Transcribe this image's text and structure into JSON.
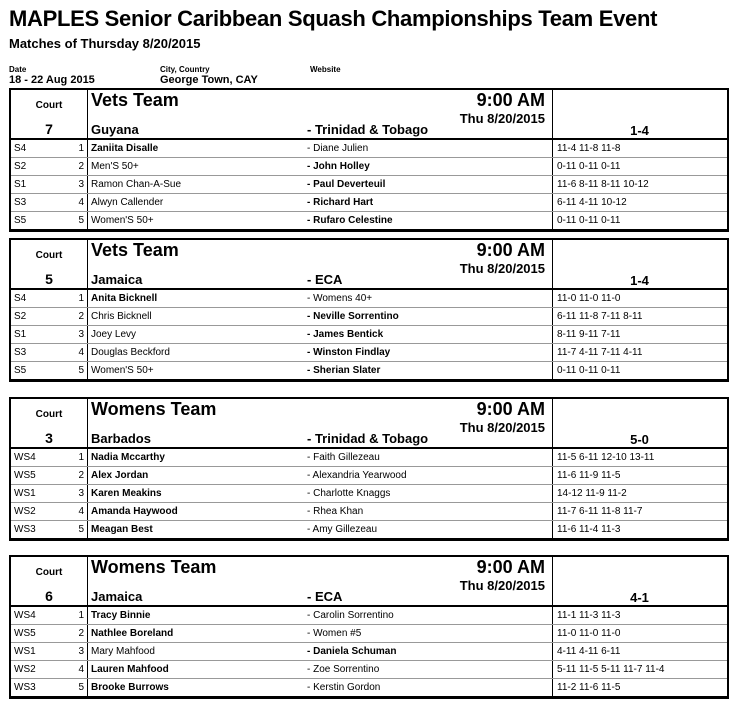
{
  "title": "MAPLES Senior Caribbean Squash Championships Team Event",
  "subtitle": "Matches of Thursday 8/20/2015",
  "meta": {
    "date_label": "Date",
    "date": "18 - 22 Aug 2015",
    "city_label": "City, Country",
    "city": "George Town, CAY",
    "website_label": "Website"
  },
  "court_label": "Court",
  "ties": [
    {
      "court": "7",
      "event": "Vets Team",
      "time": "9:00 AM",
      "date": "Thu 8/20/2015",
      "home": "Guyana",
      "away": "- Trinidad & Tobago",
      "result": "1-4",
      "matches": [
        {
          "code": "S4",
          "no": "1",
          "p1": "Zaniita Disalle",
          "p2": "- Diane Julien",
          "score": "11-4 11-8 11-8",
          "winner": 1
        },
        {
          "code": "S2",
          "no": "2",
          "p1": "Men'S 50+",
          "p2": "- John Holley",
          "score": "0-11 0-11 0-11",
          "winner": 2
        },
        {
          "code": "S1",
          "no": "3",
          "p1": "Ramon Chan-A-Sue",
          "p2": "- Paul Deverteuil",
          "score": "11-6 8-11 8-11 10-12",
          "winner": 2
        },
        {
          "code": "S3",
          "no": "4",
          "p1": "Alwyn Callender",
          "p2": "- Richard Hart",
          "score": "6-11 4-11 10-12",
          "winner": 2
        },
        {
          "code": "S5",
          "no": "5",
          "p1": "Women'S 50+",
          "p2": "- Rufaro Celestine",
          "score": "0-11 0-11 0-11",
          "winner": 2
        }
      ]
    },
    {
      "court": "5",
      "event": "Vets Team",
      "time": "9:00 AM",
      "date": "Thu 8/20/2015",
      "home": "Jamaica",
      "away": "- ECA",
      "result": "1-4",
      "matches": [
        {
          "code": "S4",
          "no": "1",
          "p1": "Anita Bicknell",
          "p2": "- Womens 40+",
          "score": "11-0 11-0 11-0",
          "winner": 1
        },
        {
          "code": "S2",
          "no": "2",
          "p1": "Chris Bicknell",
          "p2": "- Neville Sorrentino",
          "score": "6-11 11-8 7-11 8-11",
          "winner": 2
        },
        {
          "code": "S1",
          "no": "3",
          "p1": "Joey Levy",
          "p2": "- James Bentick",
          "score": "8-11 9-11 7-11",
          "winner": 2
        },
        {
          "code": "S3",
          "no": "4",
          "p1": "Douglas Beckford",
          "p2": "- Winston Findlay",
          "score": "11-7 4-11 7-11 4-11",
          "winner": 2
        },
        {
          "code": "S5",
          "no": "5",
          "p1": "Women'S 50+",
          "p2": "- Sherian Slater",
          "score": "0-11 0-11 0-11",
          "winner": 2
        }
      ]
    },
    {
      "court": "3",
      "event": "Womens Team",
      "time": "9:00 AM",
      "date": "Thu 8/20/2015",
      "home": "Barbados",
      "away": "- Trinidad & Tobago",
      "result": "5-0",
      "matches": [
        {
          "code": "WS4",
          "no": "1",
          "p1": "Nadia Mccarthy",
          "p2": "- Faith Gillezeau",
          "score": "11-5 6-11 12-10 13-11",
          "winner": 1
        },
        {
          "code": "WS5",
          "no": "2",
          "p1": "Alex Jordan",
          "p2": "- Alexandria Yearwood",
          "score": "11-6 11-9 11-5",
          "winner": 1
        },
        {
          "code": "WS1",
          "no": "3",
          "p1": "Karen Meakins",
          "p2": "- Charlotte Knaggs",
          "score": "14-12 11-9 11-2",
          "winner": 1
        },
        {
          "code": "WS2",
          "no": "4",
          "p1": "Amanda Haywood",
          "p2": "- Rhea Khan",
          "score": "11-7 6-11 11-8 11-7",
          "winner": 1
        },
        {
          "code": "WS3",
          "no": "5",
          "p1": "Meagan Best",
          "p2": "- Amy Gillezeau",
          "score": "11-6 11-4 11-3",
          "winner": 1
        }
      ]
    },
    {
      "court": "6",
      "event": "Womens Team",
      "time": "9:00 AM",
      "date": "Thu 8/20/2015",
      "home": "Jamaica",
      "away": "- ECA",
      "result": "4-1",
      "matches": [
        {
          "code": "WS4",
          "no": "1",
          "p1": "Tracy Binnie",
          "p2": "- Carolin Sorrentino",
          "score": "11-1 11-3 11-3",
          "winner": 1
        },
        {
          "code": "WS5",
          "no": "2",
          "p1": "Nathlee Boreland",
          "p2": "- Women #5",
          "score": "11-0 11-0 11-0",
          "winner": 1
        },
        {
          "code": "WS1",
          "no": "3",
          "p1": "Mary Mahfood",
          "p2": "- Daniela Schuman",
          "score": "4-11 4-11 6-11",
          "winner": 2
        },
        {
          "code": "WS2",
          "no": "4",
          "p1": "Lauren Mahfood",
          "p2": "- Zoe Sorrentino",
          "score": "5-11 11-5 5-11 11-7 11-4",
          "winner": 1
        },
        {
          "code": "WS3",
          "no": "5",
          "p1": "Brooke Burrows",
          "p2": "- Kerstin Gordon",
          "score": "11-2 11-6 11-5",
          "winner": 1
        }
      ]
    }
  ]
}
